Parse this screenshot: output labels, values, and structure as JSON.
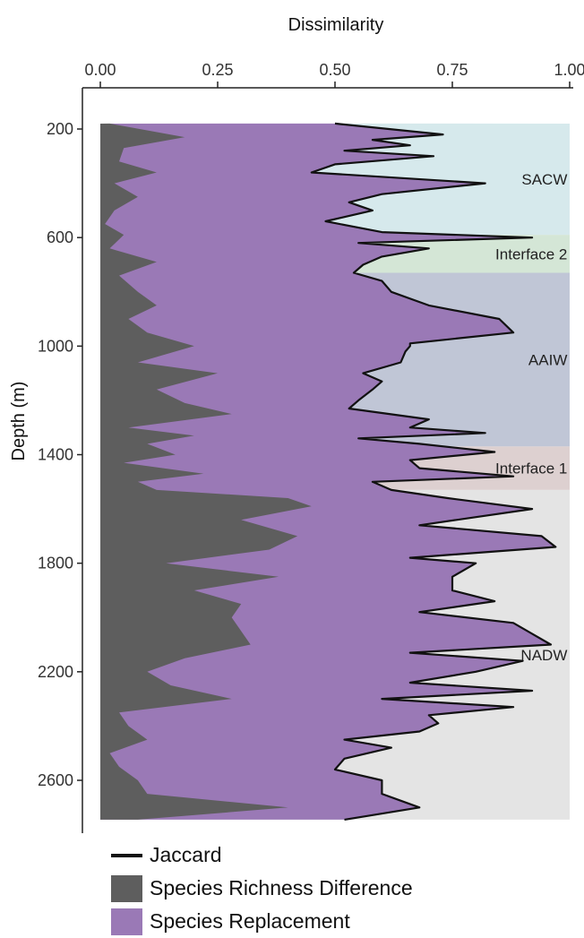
{
  "chart_data": {
    "type": "area",
    "orientation": "vertical-depth",
    "title": "",
    "xlabel": "Dissimilarity",
    "ylabel": "Depth (m)",
    "xlim": [
      0,
      1
    ],
    "ylim": [
      150,
      2750
    ],
    "x_ticks": [
      0,
      0.25,
      0.5,
      0.75,
      1
    ],
    "x_tick_labels": [
      "0.00",
      "0.25",
      "0.50",
      "0.75",
      "1.00"
    ],
    "y_ticks": [
      200,
      600,
      1000,
      1400,
      1800,
      2200,
      2600
    ],
    "y_tick_labels": [
      "200",
      "600",
      "1000",
      "1400",
      "1800",
      "2200",
      "2600"
    ],
    "grid": false,
    "legend_position": "bottom-left",
    "water_masses": [
      {
        "label": "SACW",
        "from": 180,
        "to": 590,
        "color": "#d6e9ec"
      },
      {
        "label": "Interface 2",
        "from": 590,
        "to": 730,
        "color": "#d4e6d6"
      },
      {
        "label": "AAIW",
        "from": 730,
        "to": 1370,
        "color": "#c0c6d6"
      },
      {
        "label": "Interface 1",
        "from": 1370,
        "to": 1530,
        "color": "#ddd0d0"
      },
      {
        "label": "NADW",
        "from": 1530,
        "to": 2745,
        "color": "#e4e4e4"
      }
    ],
    "colors": {
      "richness": "#5e5e5e",
      "replacement": "#9a79b6",
      "jaccard": "#111111"
    },
    "series": [
      {
        "name": "Species Richness Difference",
        "depth": [
          180,
          230,
          270,
          320,
          360,
          400,
          450,
          500,
          550,
          590,
          640,
          690,
          740,
          800,
          850,
          900,
          950,
          1000,
          1060,
          1100,
          1160,
          1210,
          1250,
          1300,
          1330,
          1360,
          1400,
          1430,
          1470,
          1500,
          1530,
          1560,
          1590,
          1640,
          1700,
          1750,
          1800,
          1850,
          1900,
          1950,
          2000,
          2050,
          2100,
          2150,
          2200,
          2250,
          2300,
          2350,
          2400,
          2450,
          2500,
          2550,
          2600,
          2650,
          2700,
          2745
        ],
        "values": [
          0.02,
          0.18,
          0.05,
          0.04,
          0.12,
          0.03,
          0.08,
          0.03,
          0.01,
          0.05,
          0.02,
          0.12,
          0.04,
          0.08,
          0.12,
          0.06,
          0.1,
          0.2,
          0.08,
          0.25,
          0.12,
          0.18,
          0.28,
          0.06,
          0.2,
          0.1,
          0.16,
          0.05,
          0.22,
          0.08,
          0.12,
          0.4,
          0.45,
          0.3,
          0.42,
          0.36,
          0.14,
          0.38,
          0.2,
          0.3,
          0.28,
          0.3,
          0.32,
          0.18,
          0.1,
          0.15,
          0.28,
          0.04,
          0.06,
          0.1,
          0.02,
          0.04,
          0.08,
          0.1,
          0.4,
          0.08
        ]
      },
      {
        "name": "Jaccard",
        "depth": [
          180,
          220,
          240,
          260,
          280,
          300,
          330,
          360,
          400,
          440,
          470,
          500,
          540,
          580,
          600,
          620,
          640,
          670,
          700,
          730,
          760,
          800,
          850,
          900,
          950,
          990,
          1000,
          1020,
          1060,
          1100,
          1130,
          1160,
          1200,
          1230,
          1270,
          1300,
          1320,
          1340,
          1360,
          1390,
          1420,
          1450,
          1480,
          1500,
          1530,
          1560,
          1600,
          1660,
          1700,
          1740,
          1780,
          1800,
          1850,
          1900,
          1940,
          1980,
          2020,
          2060,
          2100,
          2130,
          2160,
          2200,
          2240,
          2270,
          2300,
          2330,
          2360,
          2390,
          2420,
          2450,
          2480,
          2520,
          2560,
          2600,
          2650,
          2700,
          2745
        ],
        "values": [
          0.5,
          0.73,
          0.58,
          0.66,
          0.52,
          0.71,
          0.5,
          0.45,
          0.82,
          0.6,
          0.53,
          0.58,
          0.48,
          0.6,
          0.92,
          0.55,
          0.7,
          0.6,
          0.56,
          0.54,
          0.6,
          0.62,
          0.7,
          0.85,
          0.88,
          0.66,
          0.66,
          0.65,
          0.64,
          0.56,
          0.6,
          0.58,
          0.55,
          0.53,
          0.7,
          0.66,
          0.82,
          0.55,
          0.68,
          0.84,
          0.66,
          0.68,
          0.88,
          0.58,
          0.62,
          0.74,
          0.92,
          0.68,
          0.94,
          0.97,
          0.66,
          0.8,
          0.75,
          0.75,
          0.84,
          0.68,
          0.88,
          0.92,
          0.96,
          0.66,
          0.9,
          0.8,
          0.66,
          0.92,
          0.6,
          0.88,
          0.7,
          0.72,
          0.68,
          0.52,
          0.62,
          0.52,
          0.5,
          0.6,
          0.6,
          0.68,
          0.52
        ]
      }
    ]
  },
  "legend": [
    {
      "label": "Jaccard",
      "kind": "line",
      "color": "#111111"
    },
    {
      "label": "Species Richness Difference",
      "kind": "swatch",
      "color": "#5e5e5e"
    },
    {
      "label": "Species Replacement",
      "kind": "swatch",
      "color": "#9a79b6"
    }
  ]
}
